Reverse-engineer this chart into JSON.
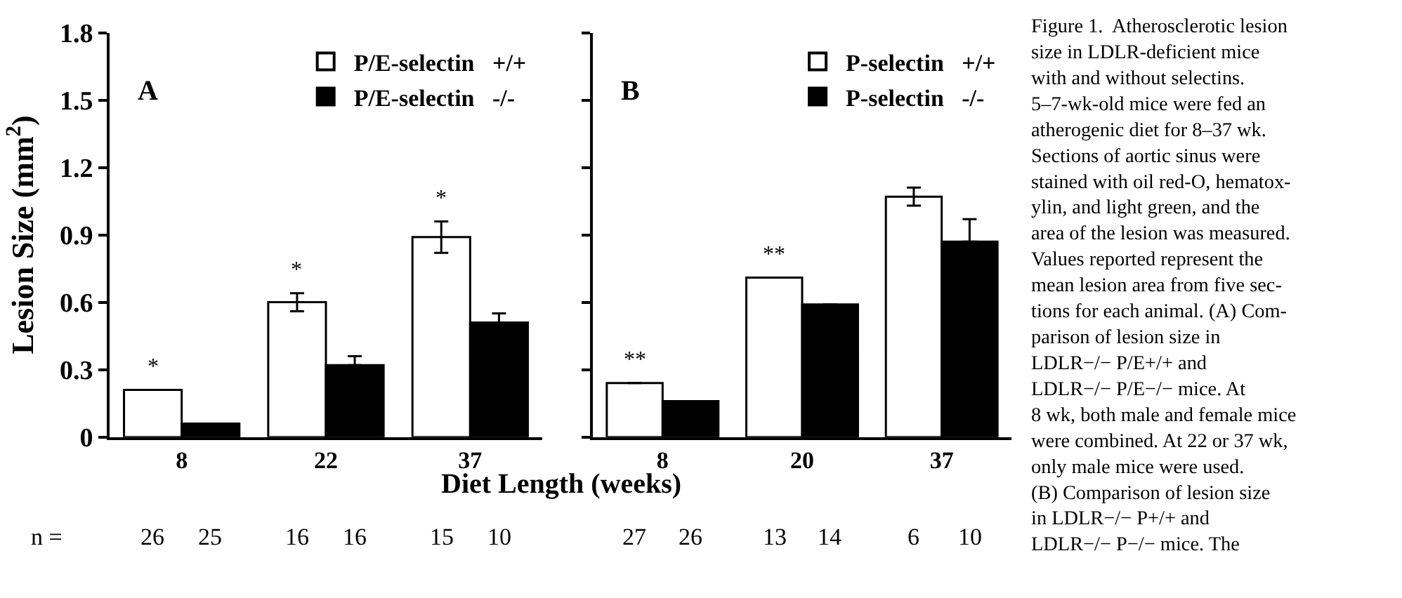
{
  "chart_data": [
    {
      "type": "bar",
      "title": "A",
      "ylabel": "Lesion Size (mm$^{2}$)",
      "xlabel": "Diet Length (weeks)",
      "categories": [
        "8",
        "22",
        "37"
      ],
      "series": [
        {
          "name": "P/E-selectin   +/+",
          "color": "#ffffff",
          "values": [
            0.21,
            0.6,
            0.89
          ],
          "errors": [
            null,
            0.04,
            0.07
          ]
        },
        {
          "name": "P/E-selectin   -/-",
          "color": "#000000",
          "values": [
            0.06,
            0.32,
            0.51
          ],
          "errors": [
            null,
            [
              0.32,
              0.36
            ],
            [
              0.51,
              0.55
            ]
          ]
        }
      ],
      "ylim": [
        0,
        1.8
      ],
      "yticks": [
        0,
        0.3,
        0.6,
        0.9,
        1.2,
        1.5,
        1.8
      ],
      "legend": "top right",
      "annotations": [
        {
          "text": "*",
          "x": "8",
          "y": 0.21
        },
        {
          "text": "*",
          "x": "22",
          "y": 0.6
        },
        {
          "text": "*",
          "x": "37",
          "y": 0.89
        },
        "n =",
        "26",
        "25",
        "16",
        "16",
        "15",
        "10",
        "Figure 1.  Atherosclerotic lesion\nsize in LDLR-deficient mice\nwith and without selectins.\n5–7-wk-old mice were fed an\natherogenic diet for 8–37 wk.\nSections of aortic sinus were\nstained with oil red-O, hematox-\nylin, and light green, and the\narea of the lesion was measured.\nValues reported represent the\nmean lesion area from five sec-\ntions for each animal. (A) Com-\nparison of lesion size in\nLDLR−/− P/E+/+ and\nLDLR−/− P/E−/− mice. At\n8 wk, both male and female mice\nwere combined. At 22 or 37 wk,\nonly male mice were used.\n(B) Comparison of lesion size\nin LDLR−/− P+/+ and\nLDLR−/− P−/− mice. The"
      ]
    },
    {
      "type": "bar",
      "title": "B",
      "categories": [
        "8",
        "20",
        "37"
      ],
      "series": [
        {
          "name": "P-selectin   +/+",
          "color": "#ffffff",
          "values": [
            0.24,
            0.71,
            1.07
          ],
          "errors": [
            null,
            null,
            0.04
          ]
        },
        {
          "name": "P-selectin   -/-",
          "color": "#000000",
          "values": [
            0.16,
            0.59,
            0.87
          ],
          "errors": [
            null,
            null,
            [
              0.87,
              0.97
            ]
          ]
        }
      ],
      "ylim": [
        0,
        1.8
      ],
      "yticks": [
        {
          "value": 0,
          "label": null
        },
        {
          "value": 0.3,
          "label": null
        },
        {
          "value": 0.6,
          "label": null
        },
        {
          "value": 0.9,
          "label": null
        },
        {
          "value": 1.2,
          "label": null
        },
        {
          "value": 1.5,
          "label": null
        },
        {
          "value": 1.8,
          "label": null
        }
      ],
      "tick_labels": "x",
      "legend": "top right",
      "annotations": [
        {
          "text": "**",
          "x": "8",
          "y": 0.24
        },
        {
          "text": "**",
          "x": "20",
          "y": 0.71
        },
        "27",
        "26",
        "13",
        "14",
        "6",
        "10"
      ]
    }
  ]
}
